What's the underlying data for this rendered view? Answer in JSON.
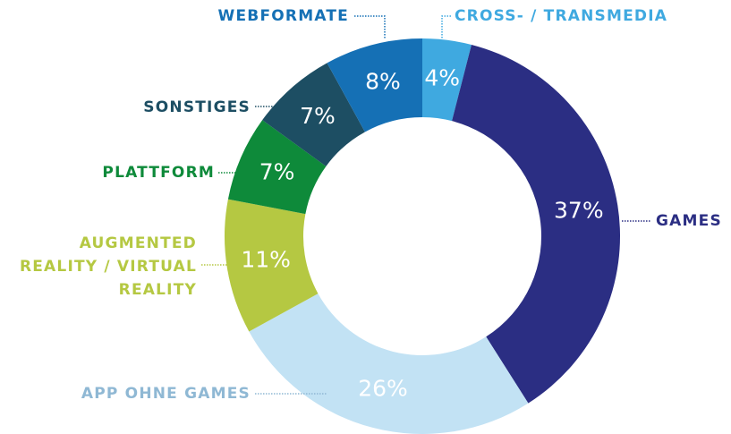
{
  "chart_data": {
    "type": "donut",
    "categories": [
      "CROSS- / TRANSMEDIA",
      "GAMES",
      "APP OHNE GAMES",
      "AUGMENTED REALITY / VIRTUAL REALITY",
      "PLATTFORM",
      "SONSTIGES",
      "WEBFORMATE"
    ],
    "values": [
      4,
      37,
      26,
      11,
      7,
      7,
      8
    ],
    "value_labels": [
      "4%",
      "37%",
      "26%",
      "11%",
      "7%",
      "7%",
      "8%"
    ],
    "colors": [
      "#3fa9e0",
      "#2b2e83",
      "#c2e2f4",
      "#b5c842",
      "#0e8a3a",
      "#1d4e63",
      "#1570b5"
    ]
  }
}
